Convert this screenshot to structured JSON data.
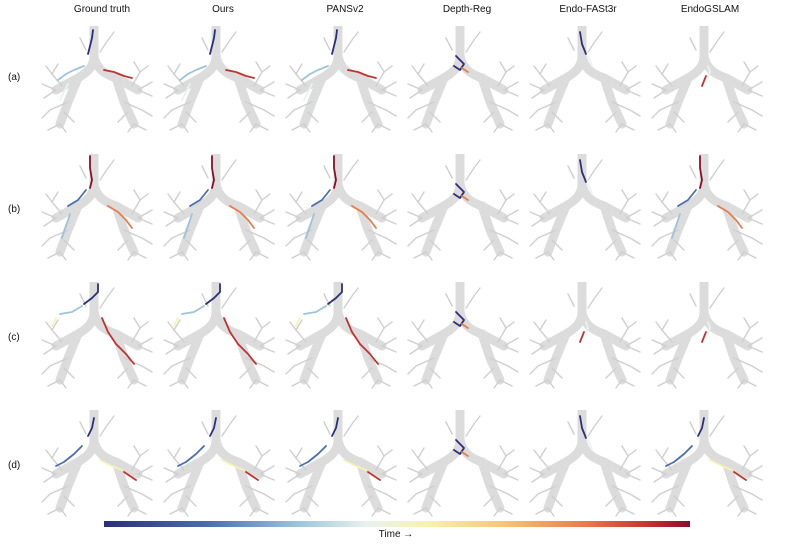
{
  "columns": [
    "Ground truth",
    "Ours",
    "PANSv2",
    "Depth-Reg",
    "Endo-FASt3r",
    "EndoGSLAM"
  ],
  "rows": [
    "(a)",
    "(b)",
    "(c)",
    "(d)"
  ],
  "colorbar": {
    "label": "Time →",
    "colors": [
      "#2b2f78",
      "#4b6fae",
      "#9cc4dc",
      "#e8f3ee",
      "#f8f2b0",
      "#f6c679",
      "#ea7b4c",
      "#c43230",
      "#8b0d28"
    ]
  },
  "airway_color": "#dcdcdc"
}
